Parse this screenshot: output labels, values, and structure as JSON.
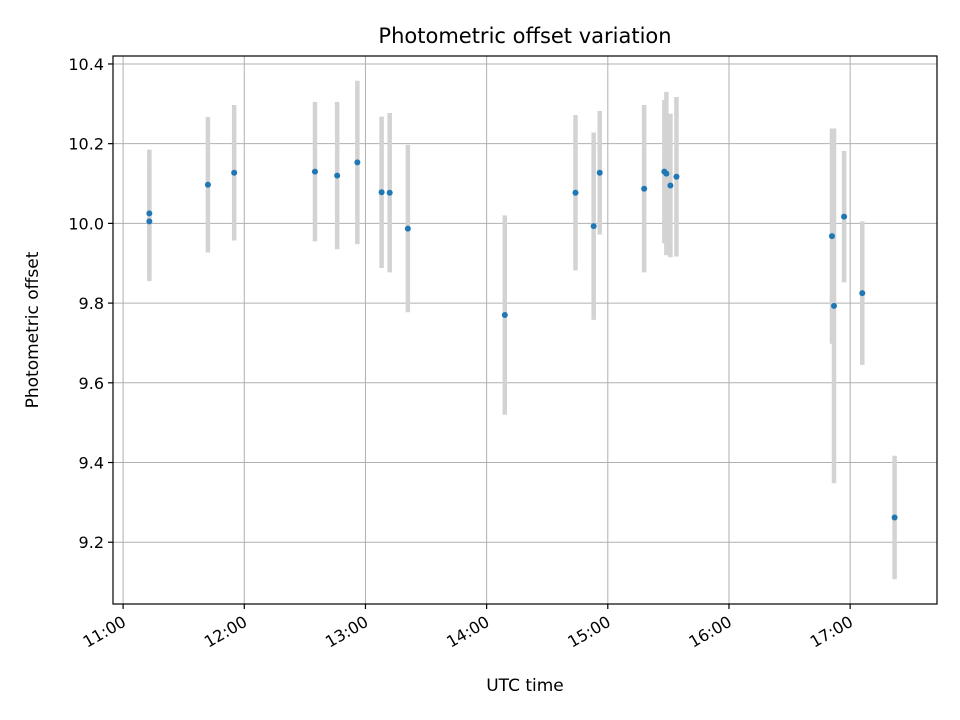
{
  "chart_data": {
    "type": "scatter",
    "title": "Photometric offset variation",
    "xlabel": "UTC time",
    "ylabel": "Photometric offset",
    "x_ticks": [
      "11:00",
      "12:00",
      "13:00",
      "14:00",
      "15:00",
      "16:00",
      "17:00"
    ],
    "y_ticks": [
      "9.2",
      "9.4",
      "9.6",
      "9.8",
      "10.0",
      "10.2",
      "10.4"
    ],
    "xlim": [
      "10:55",
      "17:43"
    ],
    "ylim": [
      9.045,
      10.42
    ],
    "grid": true,
    "colors": {
      "points": "#1f77b4",
      "errorbars": "#d3d3d3",
      "grid": "#b0b0b0"
    },
    "points": [
      {
        "x": "11:13",
        "y": 10.025,
        "err": 0.16
      },
      {
        "x": "11:13",
        "y": 10.005,
        "err": 0.15
      },
      {
        "x": "11:42",
        "y": 10.097,
        "err": 0.17
      },
      {
        "x": "11:55",
        "y": 10.127,
        "err": 0.17
      },
      {
        "x": "12:35",
        "y": 10.13,
        "err": 0.175
      },
      {
        "x": "12:46",
        "y": 10.12,
        "err": 0.185
      },
      {
        "x": "12:56",
        "y": 10.153,
        "err": 0.205
      },
      {
        "x": "13:08",
        "y": 10.078,
        "err": 0.19
      },
      {
        "x": "13:12",
        "y": 10.077,
        "err": 0.2
      },
      {
        "x": "13:21",
        "y": 9.987,
        "err": 0.21
      },
      {
        "x": "14:09",
        "y": 9.77,
        "err": 0.25
      },
      {
        "x": "14:44",
        "y": 10.077,
        "err": 0.195
      },
      {
        "x": "14:53",
        "y": 9.993,
        "err": 0.235
      },
      {
        "x": "14:56",
        "y": 10.127,
        "err": 0.155
      },
      {
        "x": "15:18",
        "y": 10.087,
        "err": 0.21
      },
      {
        "x": "15:28",
        "y": 10.13,
        "err": 0.18
      },
      {
        "x": "15:29",
        "y": 10.125,
        "err": 0.205
      },
      {
        "x": "15:31",
        "y": 10.095,
        "err": 0.18
      },
      {
        "x": "15:34",
        "y": 10.117,
        "err": 0.2
      },
      {
        "x": "16:51",
        "y": 9.968,
        "err": 0.27
      },
      {
        "x": "16:52",
        "y": 9.793,
        "err": 0.445
      },
      {
        "x": "16:57",
        "y": 10.017,
        "err": 0.165
      },
      {
        "x": "17:06",
        "y": 9.825,
        "err": 0.18
      },
      {
        "x": "17:22",
        "y": 9.262,
        "err": 0.155
      }
    ]
  }
}
